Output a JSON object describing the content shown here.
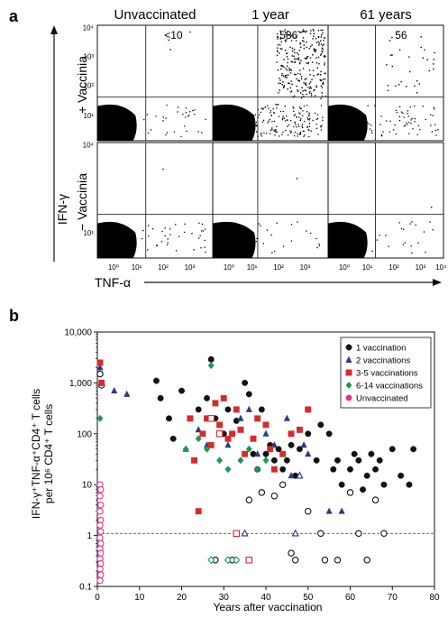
{
  "panel_a": {
    "label": "a",
    "columns": [
      "Unvaccinated",
      "1 year",
      "61 years"
    ],
    "rows": [
      "+ Vaccinia",
      "− Vaccinia"
    ],
    "counts": [
      "<10",
      "586",
      "56"
    ],
    "y_axis_label": "IFN-γ",
    "x_axis_label": "TNF-α",
    "y_ticks": [
      "10⁴",
      "10³",
      "10²",
      "10¹"
    ],
    "x_ticks": [
      "10⁰",
      "10¹",
      "10²",
      "10³",
      "10⁴"
    ]
  },
  "panel_b": {
    "label": "b",
    "chart_data": {
      "type": "scatter",
      "xlabel": "Years after vaccination",
      "ylabel_line1": "IFN-γ⁺TNF-α⁺CD4⁺ T cells",
      "ylabel_line2": "per 10⁶ CD4⁺ T cells",
      "xlim": [
        0,
        80
      ],
      "ylim": [
        0.1,
        10000
      ],
      "yscale": "log",
      "x_ticks": [
        0,
        10,
        20,
        30,
        40,
        50,
        60,
        70,
        80
      ],
      "y_ticks": [
        {
          "value": 0.1,
          "label": "0.1"
        },
        {
          "value": 1,
          "label": "1"
        },
        {
          "value": 10,
          "label": "10"
        },
        {
          "value": 100,
          "label": "100"
        },
        {
          "value": 1000,
          "label": "1,000"
        },
        {
          "value": 10000,
          "label": "10,000"
        }
      ],
      "threshold": 1.1,
      "legend_position": "top-right",
      "series": [
        {
          "name": "1 vaccination",
          "marker": "circle",
          "color": "#111111",
          "filled": [
            [
              14,
              1100
            ],
            [
              15,
              500
            ],
            [
              17,
              200
            ],
            [
              18,
              80
            ],
            [
              20,
              700
            ],
            [
              24,
              300
            ],
            [
              26,
              500
            ],
            [
              27,
              2900
            ],
            [
              28,
              200
            ],
            [
              30,
              100
            ],
            [
              31,
              300
            ],
            [
              33,
              180
            ],
            [
              35,
              1000
            ],
            [
              36,
              600
            ],
            [
              37,
              40
            ],
            [
              38,
              20
            ],
            [
              39,
              300
            ],
            [
              40,
              40
            ],
            [
              41,
              60
            ],
            [
              42,
              30
            ],
            [
              43,
              50
            ],
            [
              44,
              20
            ],
            [
              45,
              30
            ],
            [
              46,
              60
            ],
            [
              47,
              15
            ],
            [
              48,
              50
            ],
            [
              50,
              100
            ],
            [
              52,
              30
            ],
            [
              53,
              150
            ],
            [
              55,
              100
            ],
            [
              56,
              20
            ],
            [
              57,
              30
            ],
            [
              58,
              10
            ],
            [
              60,
              20
            ],
            [
              61,
              40
            ],
            [
              62,
              30
            ],
            [
              63,
              8
            ],
            [
              64,
              15
            ],
            [
              65,
              40
            ],
            [
              66,
              20
            ],
            [
              67,
              30
            ],
            [
              68,
              10
            ],
            [
              70,
              50
            ],
            [
              72,
              15
            ],
            [
              74,
              10
            ],
            [
              75,
              50
            ]
          ],
          "open": [
            [
              0,
              1500
            ],
            [
              1,
              900
            ],
            [
              28,
              0.33
            ],
            [
              32,
              0.33
            ],
            [
              36,
              5
            ],
            [
              39,
              7
            ],
            [
              42,
              6
            ],
            [
              44,
              10
            ],
            [
              46,
              0.45
            ],
            [
              47,
              0.33
            ],
            [
              50,
              3
            ],
            [
              53,
              1.1
            ],
            [
              54,
              0.33
            ],
            [
              57,
              0.33
            ],
            [
              60,
              7
            ],
            [
              62,
              1.1
            ],
            [
              64,
              0.33
            ],
            [
              66,
              5
            ],
            [
              68,
              1.1
            ]
          ]
        },
        {
          "name": "2 vaccinations",
          "marker": "triangle",
          "color": "#2b3a8c",
          "filled": [
            [
              0,
              2000
            ],
            [
              4,
              700
            ],
            [
              7,
              600
            ],
            [
              21,
              50
            ],
            [
              24,
              120
            ],
            [
              26,
              60
            ],
            [
              29,
              100
            ],
            [
              31,
              60
            ],
            [
              34,
              200
            ],
            [
              36,
              300
            ],
            [
              38,
              40
            ],
            [
              40,
              100
            ],
            [
              42,
              60
            ],
            [
              45,
              200
            ],
            [
              46,
              15
            ],
            [
              48,
              15
            ],
            [
              49,
              60
            ],
            [
              50,
              40
            ],
            [
              55,
              3
            ],
            [
              58,
              3
            ]
          ],
          "open": [
            [
              35,
              1.1
            ],
            [
              47,
              1.1
            ],
            [
              48,
              15
            ]
          ]
        },
        {
          "name": "3-5 vaccinations",
          "marker": "square",
          "color": "#d62b2b",
          "filled": [
            [
              0,
              2500
            ],
            [
              1,
              1000
            ],
            [
              22,
              200
            ],
            [
              23,
              30
            ],
            [
              24,
              3
            ],
            [
              25,
              100
            ],
            [
              26,
              200
            ],
            [
              27,
              60
            ],
            [
              28,
              400
            ],
            [
              29,
              150
            ],
            [
              30,
              500
            ],
            [
              31,
              80
            ],
            [
              32,
              100
            ],
            [
              33,
              300
            ],
            [
              34,
              120
            ],
            [
              35,
              40
            ],
            [
              37,
              80
            ],
            [
              38,
              200
            ],
            [
              40,
              150
            ],
            [
              41,
              50
            ],
            [
              42,
              20
            ],
            [
              44,
              40
            ],
            [
              46,
              100
            ],
            [
              48,
              120
            ],
            [
              50,
              300
            ]
          ],
          "open": [
            [
              27,
              200
            ],
            [
              29,
              100
            ],
            [
              33,
              1.1
            ],
            [
              36,
              0.33
            ]
          ]
        },
        {
          "name": "6-14 vaccinations",
          "marker": "diamond",
          "color": "#1a9a50",
          "filled": [
            [
              0,
              200
            ],
            [
              21,
              50
            ],
            [
              24,
              80
            ],
            [
              26,
              50
            ],
            [
              27,
              2200
            ],
            [
              29,
              30
            ],
            [
              31,
              20
            ],
            [
              34,
              30
            ],
            [
              36,
              50
            ],
            [
              38,
              20
            ],
            [
              40,
              30
            ]
          ],
          "open": [
            [
              27,
              0.33
            ],
            [
              31,
              0.33
            ],
            [
              33,
              0.33
            ]
          ]
        },
        {
          "name": "Unvaccinated",
          "marker": "circle",
          "color": "#e3338a",
          "filled": [],
          "open": [
            [
              0,
              10
            ],
            [
              0.8,
              8
            ],
            [
              0,
              6
            ],
            [
              0.8,
              4
            ],
            [
              0,
              3
            ],
            [
              0.8,
              2
            ],
            [
              0,
              1.6
            ],
            [
              0.8,
              1.2
            ],
            [
              0,
              0.9
            ],
            [
              0.8,
              0.7
            ],
            [
              0,
              0.55
            ],
            [
              0.8,
              0.45
            ],
            [
              0,
              0.35
            ],
            [
              0.8,
              0.28
            ],
            [
              0,
              0.22
            ],
            [
              0.8,
              0.17
            ],
            [
              0,
              0.13
            ]
          ]
        }
      ]
    }
  }
}
